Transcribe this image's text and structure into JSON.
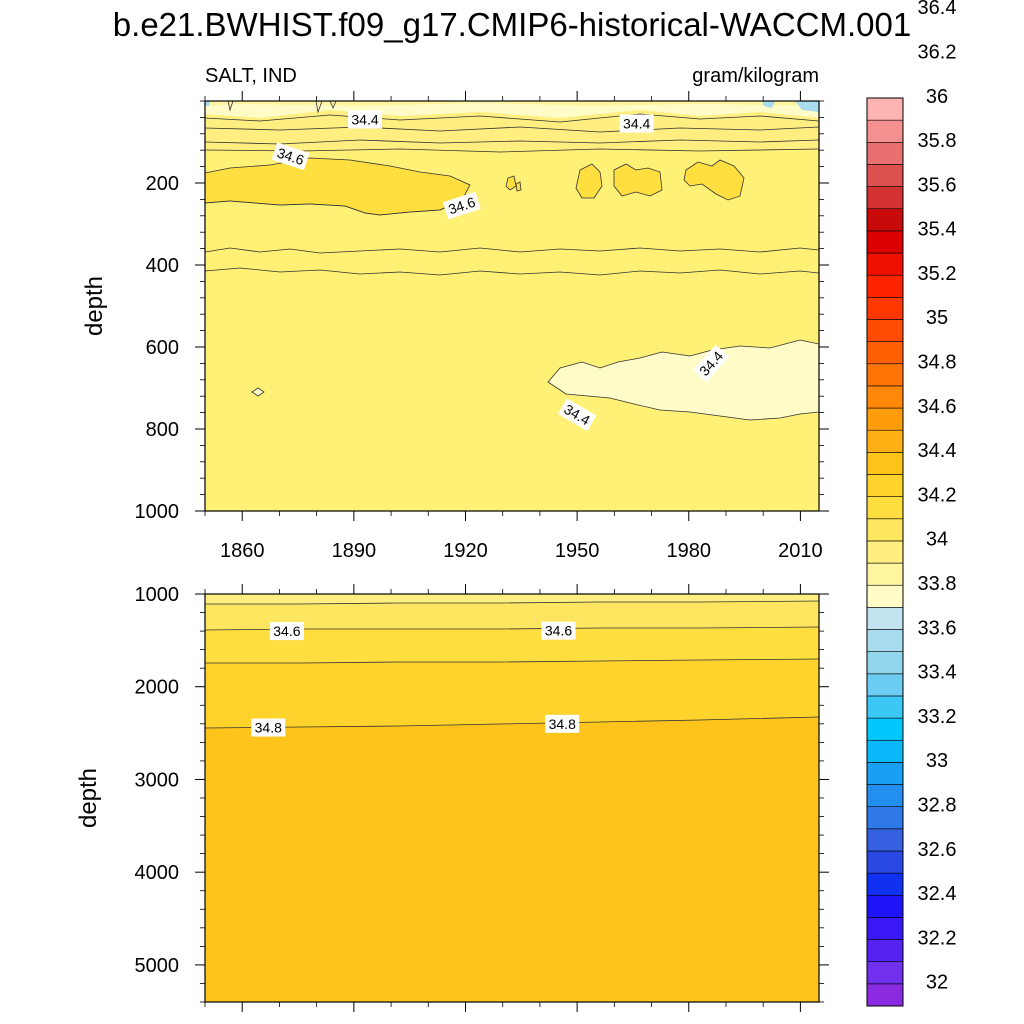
{
  "chart_data": {
    "type": "heatmap",
    "title": "b.e21.BWHIST.f09_g17.CMIP6-historical-WACCM.001",
    "variable_label": "SALT, IND",
    "units_label": "gram/kilogram",
    "x": {
      "range": [
        1850,
        2015
      ],
      "ticks": [
        1860,
        1890,
        1920,
        1950,
        1980,
        2010
      ],
      "tick_labels": [
        "1860",
        "1890",
        "1920",
        "1950",
        "1980",
        "2010"
      ]
    },
    "panels": [
      {
        "ylabel": "depth",
        "ylim": [
          0,
          1000
        ],
        "y_ticks": [
          200,
          400,
          600,
          800,
          1000
        ],
        "y_tick_labels": [
          "200",
          "400",
          "600",
          "800",
          "1000"
        ],
        "contour_labels": [
          {
            "text": "34.4",
            "year": 1893,
            "depth": 45,
            "angle": 0
          },
          {
            "text": "34.4",
            "year": 1966,
            "depth": 55,
            "angle": 0
          },
          {
            "text": "34.6",
            "year": 1873,
            "depth": 135,
            "angle": 18
          },
          {
            "text": "34.6",
            "year": 1919,
            "depth": 255,
            "angle": -18
          },
          {
            "text": "34.4",
            "year": 1986,
            "depth": 640,
            "angle": -48
          },
          {
            "text": "34.4",
            "year": 1950,
            "depth": 765,
            "angle": 30
          }
        ]
      },
      {
        "ylabel": "depth",
        "ylim": [
          1000,
          5400
        ],
        "y_ticks": [
          1000,
          2000,
          3000,
          4000,
          5000
        ],
        "y_tick_labels": [
          "1000",
          "2000",
          "3000",
          "4000",
          "5000"
        ],
        "contour_labels": [
          {
            "text": "34.6",
            "year": 1872,
            "depth": 1400,
            "angle": 0
          },
          {
            "text": "34.6",
            "year": 1945,
            "depth": 1395,
            "angle": 0
          },
          {
            "text": "34.8",
            "year": 1867,
            "depth": 2440,
            "angle": 0
          },
          {
            "text": "34.8",
            "year": 1946,
            "depth": 2400,
            "angle": 0
          }
        ]
      }
    ],
    "colorbar": {
      "labels": [
        "32",
        "32.2",
        "32.4",
        "32.6",
        "32.8",
        "33",
        "33.2",
        "33.4",
        "33.6",
        "33.8",
        "34",
        "34.2",
        "34.4",
        "34.6",
        "34.8",
        "35",
        "35.2",
        "35.4",
        "35.6",
        "35.8",
        "36",
        "36.2",
        "36.4"
      ],
      "colors": [
        "#8a2be2",
        "#7030ee",
        "#5522f2",
        "#3a18f5",
        "#1e14f7",
        "#1030f2",
        "#2a48e2",
        "#3560e0",
        "#2f78e8",
        "#228ef0",
        "#18a0f5",
        "#0ab8fa",
        "#00c8ff",
        "#3cc8f5",
        "#6cccf2",
        "#92d6ee",
        "#a8dcee",
        "#c2e4f0",
        "#fffcc8",
        "#fff5a0",
        "#ffee80",
        "#ffe660",
        "#ffde40",
        "#ffd22c",
        "#ffc41c",
        "#ffb014",
        "#ff9c0c",
        "#ff8808",
        "#ff7406",
        "#ff6004",
        "#ff4c02",
        "#ff3800",
        "#ff2400",
        "#f01000",
        "#dc0000",
        "#c80a0a",
        "#d23232",
        "#dc5050",
        "#e87070",
        "#f49090",
        "#ffb4b4"
      ]
    }
  }
}
